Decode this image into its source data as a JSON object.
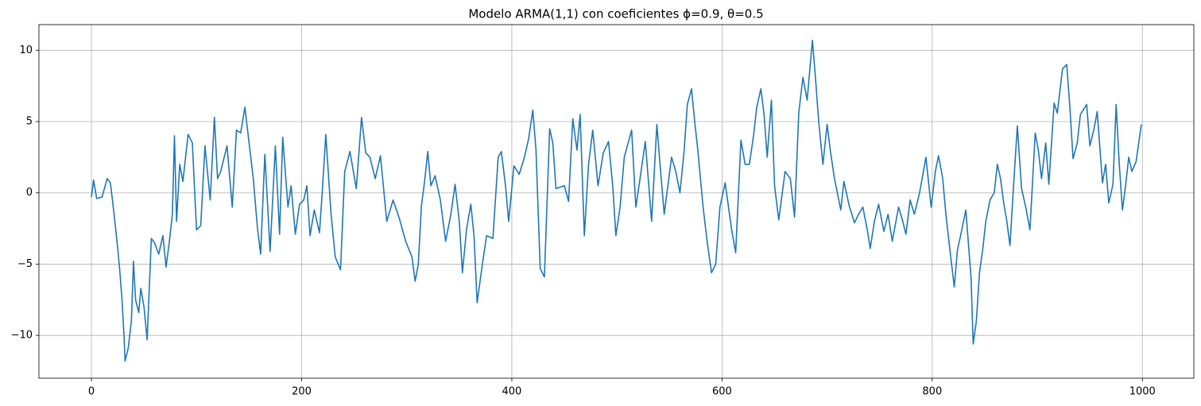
{
  "chart_data": {
    "type": "line",
    "title": "Modelo ARMA(1,1) con coeficientes ϕ=0.9, θ=0.5",
    "color": "#1f77b4",
    "grid": true,
    "xlim": [
      -49.95,
      1048.95
    ],
    "ylim": [
      -13.0,
      11.8
    ],
    "xticks": [
      0,
      200,
      400,
      600,
      800,
      1000
    ],
    "yticks": [
      {
        "value": -10,
        "label": "−10"
      },
      {
        "value": -5,
        "label": "−5"
      },
      0,
      5,
      10
    ],
    "x": [
      0,
      2,
      5,
      10,
      15,
      18,
      20,
      23,
      25,
      27,
      29,
      31,
      32,
      35,
      38,
      40,
      42,
      45,
      47,
      50,
      53,
      57,
      60,
      64,
      68,
      71,
      74,
      77,
      79,
      81,
      84,
      87,
      92,
      96,
      100,
      104,
      108,
      113,
      117,
      120,
      123,
      129,
      134,
      138,
      142,
      146,
      150,
      154,
      158,
      161,
      165,
      170,
      175,
      179,
      182,
      187,
      190,
      194,
      198,
      202,
      205,
      208,
      212,
      217,
      220,
      223,
      228,
      232,
      237,
      241,
      246,
      252,
      257,
      261,
      265,
      270,
      275,
      281,
      287,
      293,
      299,
      305,
      308,
      311,
      314,
      317,
      320,
      323,
      327,
      332,
      337,
      342,
      346,
      350,
      353,
      357,
      361,
      364,
      367,
      372,
      376,
      382,
      387,
      390,
      394,
      397,
      402,
      407,
      412,
      416,
      420,
      423,
      427,
      431,
      436,
      439,
      442,
      450,
      454,
      458,
      462,
      465,
      469,
      473,
      477,
      482,
      487,
      492,
      496,
      499,
      503,
      507,
      514,
      518,
      522,
      527,
      533,
      538,
      541,
      545,
      552,
      556,
      560,
      564,
      567,
      571,
      574,
      577,
      582,
      586,
      590,
      594,
      598,
      603,
      609,
      613,
      618,
      622,
      626,
      630,
      633,
      637,
      640,
      643,
      647,
      650,
      654,
      660,
      665,
      669,
      673,
      677,
      681,
      686,
      689,
      692,
      696,
      700,
      703,
      707,
      713,
      716,
      721,
      726,
      730,
      734,
      738,
      741,
      745,
      749,
      754,
      758,
      762,
      768,
      772,
      775,
      779,
      783,
      788,
      794,
      799,
      803,
      806,
      810,
      813,
      817,
      821,
      824,
      827,
      832,
      837,
      839,
      842,
      845,
      848,
      851,
      855,
      859,
      862,
      865,
      868,
      871,
      874,
      877,
      881,
      885,
      889,
      893,
      898,
      901,
      904,
      908,
      911,
      916,
      919,
      924,
      928,
      931,
      934,
      938,
      941,
      947,
      950,
      954,
      957,
      962,
      965,
      968,
      972,
      975,
      978,
      981,
      984,
      987,
      990,
      994,
      999
    ],
    "values": [
      -0.3,
      0.9,
      -0.4,
      -0.3,
      1.0,
      0.7,
      -0.5,
      -2.5,
      -3.9,
      -5.5,
      -7.4,
      -10,
      -11.8,
      -10.9,
      -9,
      -4.8,
      -7.5,
      -8.4,
      -6.7,
      -8.0,
      -10.3,
      -3.2,
      -3.5,
      -4.3,
      -3.0,
      -5.2,
      -3.5,
      -1.5,
      4.0,
      -2.0,
      2.0,
      0.8,
      4.1,
      3.5,
      -2.6,
      -2.3,
      3.3,
      -0.5,
      5.3,
      1.0,
      1.5,
      3.3,
      -1.0,
      4.4,
      4.2,
      6.0,
      3.5,
      1.0,
      -2.5,
      -4.3,
      2.7,
      -4.1,
      3.3,
      -2.9,
      3.9,
      -1.0,
      0.5,
      -2.9,
      -0.8,
      -0.5,
      0.5,
      -3.0,
      -1.2,
      -2.8,
      0.5,
      4.1,
      -1.5,
      -4.5,
      -5.4,
      1.5,
      2.9,
      0.3,
      5.3,
      2.8,
      2.5,
      1.0,
      2.6,
      -2.0,
      -0.5,
      -1.8,
      -3.4,
      -4.5,
      -6.2,
      -5.0,
      -0.9,
      0.8,
      2.9,
      0.5,
      1.2,
      -0.5,
      -3.4,
      -1.5,
      0.6,
      -2.0,
      -5.6,
      -2.5,
      -0.8,
      -3.0,
      -7.7,
      -5.0,
      -3.0,
      -3.2,
      2.5,
      2.9,
      0.5,
      -2.0,
      1.9,
      1.3,
      2.5,
      3.8,
      5.8,
      3.0,
      -5.3,
      -5.9,
      4.5,
      3.5,
      0.3,
      0.5,
      -0.6,
      5.2,
      3.0,
      5.5,
      -3.0,
      2.0,
      4.4,
      0.5,
      2.8,
      3.6,
      0.5,
      -3.0,
      -1.0,
      2.5,
      4.4,
      -1.0,
      1.0,
      3.6,
      -2.0,
      4.8,
      2.0,
      -1.5,
      2.5,
      1.5,
      0.0,
      3.0,
      6.2,
      7.3,
      5.0,
      3.0,
      -1.0,
      -3.5,
      -5.6,
      -5.0,
      -1.0,
      0.7,
      -2.5,
      -4.2,
      3.7,
      2.0,
      2.0,
      4.0,
      6.0,
      7.3,
      5.5,
      2.5,
      6.5,
      0.5,
      -1.9,
      1.5,
      1.0,
      -1.7,
      5.6,
      8.1,
      6.5,
      10.7,
      8.0,
      5.0,
      2.0,
      4.8,
      3.0,
      1.0,
      -1.2,
      0.8,
      -0.9,
      -2.1,
      -1.5,
      -1.0,
      -2.5,
      -3.9,
      -2.0,
      -0.8,
      -2.7,
      -1.5,
      -3.4,
      -1.0,
      -2.0,
      -2.9,
      -0.5,
      -1.5,
      0.0,
      2.5,
      -1.0,
      1.5,
      2.6,
      1.0,
      -1.5,
      -4.1,
      -6.6,
      -4.0,
      -3.0,
      -1.2,
      -6.0,
      -10.6,
      -9.0,
      -5.6,
      -4.0,
      -2.0,
      -0.5,
      0.0,
      2.0,
      1.0,
      -0.7,
      -2.0,
      -3.7,
      0.0,
      4.7,
      0.3,
      -1.0,
      -2.6,
      4.2,
      3.0,
      1.0,
      3.5,
      0.6,
      6.3,
      5.6,
      8.7,
      9.0,
      6.0,
      2.4,
      3.5,
      5.5,
      6.2,
      3.3,
      4.5,
      5.7,
      0.7,
      2.0,
      -0.7,
      0.6,
      6.2,
      2.0,
      -1.2,
      0.5,
      2.5,
      1.5,
      2.2,
      4.8
    ]
  }
}
